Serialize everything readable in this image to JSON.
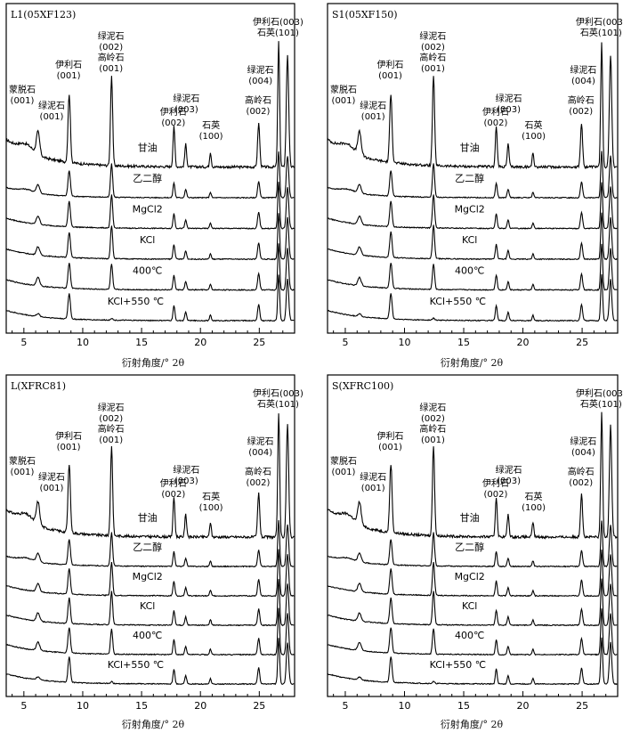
{
  "figure": {
    "xlabel": "衍射角度/° 2θ"
  },
  "chart_data": [
    {
      "type": "line",
      "title": "L1(05XF123)",
      "xlim": [
        3.5,
        28
      ],
      "xticks": [
        5,
        10,
        15,
        20,
        25
      ],
      "series": [
        {
          "name": "甘油"
        },
        {
          "name": "乙二醇"
        },
        {
          "name": "MgCl2"
        },
        {
          "name": "KCl"
        },
        {
          "name": "400℃"
        },
        {
          "name": "KCl+550 ℃"
        }
      ],
      "peak_labels": [
        {
          "text": [
            "蒙脱石",
            "(001)"
          ],
          "x": 5.4
        },
        {
          "text": [
            "绿泥石",
            "(001)"
          ],
          "x": 6.4
        },
        {
          "text": [
            "伊利石",
            "(001)"
          ],
          "x": 8.8
        },
        {
          "text": [
            "绿泥石",
            "(002)",
            "高岭石",
            "(001)"
          ],
          "x": 12.4
        },
        {
          "text": [
            "伊利石",
            "(002)"
          ],
          "x": 17.7
        },
        {
          "text": [
            "绿泥石",
            "(003)"
          ],
          "x": 18.8
        },
        {
          "text": [
            "石英",
            "(100)"
          ],
          "x": 20.9
        },
        {
          "text": [
            "高岭石",
            "(002)"
          ],
          "x": 24.9
        },
        {
          "text": [
            "绿泥石",
            "(004)"
          ],
          "x": 25.1
        },
        {
          "text": [
            "伊利石(003)",
            "石英(101)"
          ],
          "x": 26.6
        }
      ]
    },
    {
      "type": "line",
      "title": "S1(05XF150)",
      "xlim": [
        3.5,
        28
      ],
      "xticks": [
        5,
        10,
        15,
        20,
        25
      ],
      "series": [
        {
          "name": "甘油"
        },
        {
          "name": "乙二醇"
        },
        {
          "name": "MgCl2"
        },
        {
          "name": "KCl"
        },
        {
          "name": "400℃"
        },
        {
          "name": "KCl+550 ℃"
        }
      ],
      "peak_labels": [
        {
          "text": [
            "蒙脱石",
            "(001)"
          ],
          "x": 5.4
        },
        {
          "text": [
            "绿泥石",
            "(001)"
          ],
          "x": 6.4
        },
        {
          "text": [
            "伊利石",
            "(001)"
          ],
          "x": 8.8
        },
        {
          "text": [
            "绿泥石",
            "(002)",
            "高岭石",
            "(001)"
          ],
          "x": 12.4
        },
        {
          "text": [
            "伊利石",
            "(002)"
          ],
          "x": 17.7
        },
        {
          "text": [
            "绿泥石",
            "(003)"
          ],
          "x": 18.8
        },
        {
          "text": [
            "石英",
            "(100)"
          ],
          "x": 20.9
        },
        {
          "text": [
            "高岭石",
            "(002)"
          ],
          "x": 24.9
        },
        {
          "text": [
            "绿泥石",
            "(004)"
          ],
          "x": 25.1
        },
        {
          "text": [
            "伊利石(003)",
            "石英(101)"
          ],
          "x": 26.6
        }
      ]
    },
    {
      "type": "line",
      "title": "L(XFRC81)",
      "xlim": [
        3.5,
        28
      ],
      "xticks": [
        5,
        10,
        15,
        20,
        25
      ],
      "series": [
        {
          "name": "甘油"
        },
        {
          "name": "乙二醇"
        },
        {
          "name": "MgCl2"
        },
        {
          "name": "KCl"
        },
        {
          "name": "400℃"
        },
        {
          "name": "KCl+550 ℃"
        }
      ],
      "peak_labels": [
        {
          "text": [
            "蒙脱石",
            "(001)"
          ],
          "x": 5.4
        },
        {
          "text": [
            "绿泥石",
            "(001)"
          ],
          "x": 6.4
        },
        {
          "text": [
            "伊利石",
            "(001)"
          ],
          "x": 8.8
        },
        {
          "text": [
            "绿泥石",
            "(002)",
            "高岭石",
            "(001)"
          ],
          "x": 12.4
        },
        {
          "text": [
            "伊利石",
            "(002)"
          ],
          "x": 17.7
        },
        {
          "text": [
            "绿泥石",
            "(003)"
          ],
          "x": 18.8
        },
        {
          "text": [
            "石英",
            "(100)"
          ],
          "x": 20.9
        },
        {
          "text": [
            "高岭石",
            "(002)"
          ],
          "x": 24.9
        },
        {
          "text": [
            "绿泥石",
            "(004)"
          ],
          "x": 25.1
        },
        {
          "text": [
            "伊利石(003)",
            "石英(101)"
          ],
          "x": 26.6
        }
      ]
    },
    {
      "type": "line",
      "title": "S(XFRC100)",
      "xlim": [
        3.5,
        28
      ],
      "xticks": [
        5,
        10,
        15,
        20,
        25
      ],
      "series": [
        {
          "name": "甘油"
        },
        {
          "name": "乙二醇"
        },
        {
          "name": "MgCl2"
        },
        {
          "name": "KCl"
        },
        {
          "name": "400℃"
        },
        {
          "name": "KCl+550 ℃"
        }
      ],
      "peak_labels": [
        {
          "text": [
            "蒙脱石",
            "(001)"
          ],
          "x": 5.4
        },
        {
          "text": [
            "绿泥石",
            "(001)"
          ],
          "x": 6.4
        },
        {
          "text": [
            "伊利石",
            "(001)"
          ],
          "x": 8.8
        },
        {
          "text": [
            "绿泥石",
            "(002)",
            "高岭石",
            "(001)"
          ],
          "x": 12.4
        },
        {
          "text": [
            "伊利石",
            "(002)"
          ],
          "x": 17.7
        },
        {
          "text": [
            "绿泥石",
            "(003)"
          ],
          "x": 18.8
        },
        {
          "text": [
            "石英",
            "(100)"
          ],
          "x": 20.9
        },
        {
          "text": [
            "高岭石",
            "(002)"
          ],
          "x": 24.9
        },
        {
          "text": [
            "绿泥石",
            "(004)"
          ],
          "x": 25.1
        },
        {
          "text": [
            "伊利石(003)",
            "石英(101)"
          ],
          "x": 26.6
        }
      ]
    }
  ]
}
